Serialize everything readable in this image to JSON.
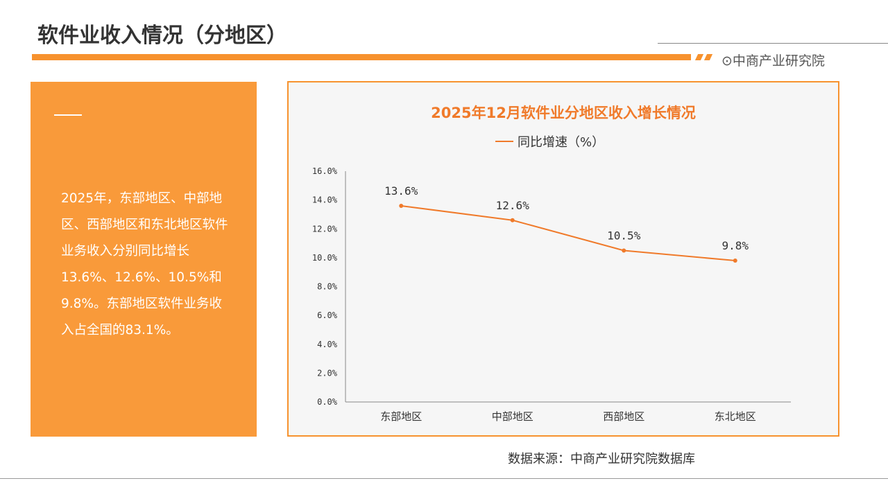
{
  "header": {
    "title": "软件业收入情况（分地区）",
    "brand": "中商产业研究院",
    "brand_icon": "target-circle-icon"
  },
  "summary": {
    "text": "2025年，东部地区、中部地区、西部地区和东北地区软件业务收入分别同比增长13.6%、12.6%、10.5%和9.8%。东部地区软件业务收入占全国的83.1%。"
  },
  "footer": {
    "source": "数据来源：中商产业研究院数据库"
  },
  "colors": {
    "accent": "#f7922e",
    "line": "#f07a2a"
  },
  "chart_data": {
    "type": "line",
    "title": "2025年12月软件业分地区收入增长情况",
    "categories": [
      "东部地区",
      "中部地区",
      "西部地区",
      "东北地区"
    ],
    "series": [
      {
        "name": "同比增速（%）",
        "values": [
          13.6,
          12.6,
          10.5,
          9.8
        ]
      }
    ],
    "data_labels": [
      "13.6%",
      "12.6%",
      "10.5%",
      "9.8%"
    ],
    "yticks": [
      "0.0%",
      "2.0%",
      "4.0%",
      "6.0%",
      "8.0%",
      "10.0%",
      "12.0%",
      "14.0%",
      "16.0%"
    ],
    "ylim": [
      0,
      16
    ],
    "legend": "top",
    "grid": false,
    "xlabel": "",
    "ylabel": ""
  }
}
